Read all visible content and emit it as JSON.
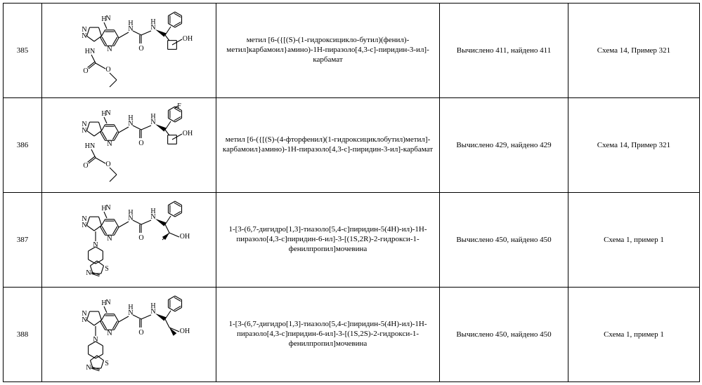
{
  "rows": [
    {
      "num": "385",
      "name": "метил [6-({[(S)-(1-гидроксицикло-бутил)(фенил)-метил]карбамоил}амино)-1H-пиразоло[4,3-c]-пиридин-3-ил]-карбамат",
      "mass": "Вычислено 411, найдено 411",
      "ref": "Схема 14, Пример 321",
      "svg_key": "svgA"
    },
    {
      "num": "386",
      "name": "метил [6-({[(S)-(4-фторфенил)(1-гидроксициклобутил)метил]-карбамоил}амино)-1H-пиразоло[4,3-c]-пиридин-3-ил]-карбамат",
      "mass": "Вычислено 429, найдено 429",
      "ref": "Схема 14, Пример 321",
      "svg_key": "svgB"
    },
    {
      "num": "387",
      "name": "1-[3-(6,7-дигидро[1,3]-тиазоло[5,4-c]пиридин-5(4H)-ил)-1H-пиразоло[4,3-c]пиридин-6-ил]-3-[(1S,2R)-2-гидрокси-1-фенилпропил]мочевина",
      "mass": "Вычислено 450, найдено 450",
      "ref": "Схема 1, пример 1",
      "svg_key": "svgC"
    },
    {
      "num": "388",
      "name": "1-[3-(6,7-дигидро[1,3]-тиазоло[5,4-c]пиридин-5(4H)-ил)-1H-пиразоло[4,3-c]пиридин-6-ил]-3-[(1S,2S)-2-гидрокси-1-фенилпропил]мочевина",
      "mass": "Вычислено 450, найдено 450",
      "ref": "Схема 1, пример 1",
      "svg_key": "svgD"
    }
  ],
  "style": {
    "stroke": "#000000",
    "stroke_width": 1.1,
    "font": "10px Times New Roman",
    "bg": "#ffffff"
  }
}
